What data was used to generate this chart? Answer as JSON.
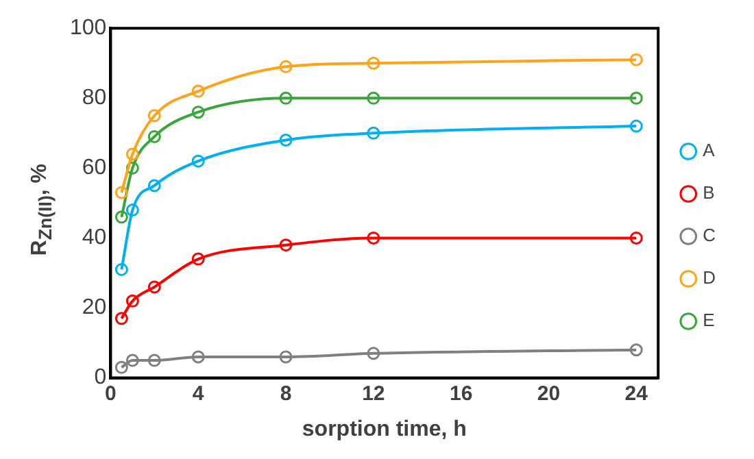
{
  "chart_data": {
    "type": "line",
    "xlabel": "sorption time, h",
    "ylabel": "R$_{Zn(II)}$, %",
    "x": [
      0.5,
      1,
      2,
      4,
      8,
      12,
      24
    ],
    "series": [
      {
        "name": "A",
        "color": "#00b0f0",
        "values": [
          31,
          48,
          55,
          62,
          68,
          70,
          72
        ]
      },
      {
        "name": "B",
        "color": "#ff0000",
        "values": [
          17,
          22,
          26,
          34,
          38,
          40,
          40
        ]
      },
      {
        "name": "C",
        "color": "#808080",
        "values": [
          3,
          5,
          5,
          6,
          6,
          7,
          8
        ]
      },
      {
        "name": "D",
        "color": "#ffa31a",
        "values": [
          53,
          64,
          75,
          82,
          89,
          90,
          91
        ]
      },
      {
        "name": "E",
        "color": "#3aa53a",
        "values": [
          46,
          60,
          69,
          76,
          80,
          80,
          80
        ]
      }
    ],
    "xlim": [
      0,
      25
    ],
    "xticks": [
      0,
      4,
      8,
      12,
      16,
      20,
      24
    ],
    "ylim": [
      0,
      100
    ],
    "yticks": [
      0,
      20,
      40,
      60,
      80,
      100
    ],
    "grid": false,
    "legend": "right",
    "marker": "circle",
    "line_style": "solid"
  }
}
